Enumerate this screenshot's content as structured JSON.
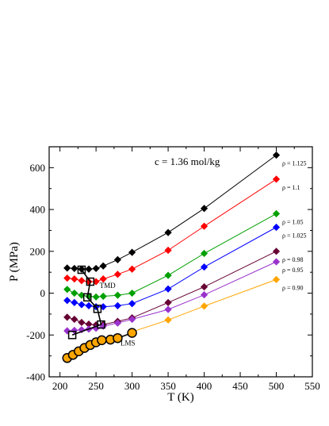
{
  "chart_data": {
    "type": "line",
    "title": "",
    "annotation": "c = 1.36 mol/kg",
    "xlabel": "T (K)",
    "ylabel": "P (MPa)",
    "xlim": [
      185,
      550
    ],
    "ylim": [
      -400,
      700
    ],
    "x_ticks": [
      200,
      250,
      300,
      350,
      400,
      450,
      500,
      550
    ],
    "y_ticks": [
      -400,
      -200,
      0,
      200,
      400,
      600
    ],
    "grid": false,
    "series": [
      {
        "name": "ρ = 1.125",
        "color": "#000000",
        "marker": "diamond",
        "x": [
          210,
          220,
          230,
          240,
          250,
          260,
          280,
          300,
          350,
          400,
          500
        ],
        "y": [
          120,
          118,
          115,
          115,
          118,
          130,
          160,
          195,
          290,
          405,
          660
        ]
      },
      {
        "name": "ρ = 1.1",
        "color": "#ff0000",
        "marker": "diamond",
        "x": [
          210,
          220,
          230,
          240,
          250,
          260,
          280,
          300,
          350,
          400,
          500
        ],
        "y": [
          72,
          68,
          60,
          55,
          55,
          68,
          90,
          115,
          205,
          320,
          545
        ]
      },
      {
        "name": "ρ = 1.05",
        "color": "#00a000",
        "marker": "diamond",
        "x": [
          210,
          220,
          230,
          240,
          250,
          260,
          280,
          300,
          350,
          400,
          500
        ],
        "y": [
          18,
          0,
          -10,
          -15,
          -18,
          -15,
          -10,
          0,
          85,
          190,
          380
        ]
      },
      {
        "name": "ρ = 1.025",
        "color": "#0000ff",
        "marker": "diamond",
        "x": [
          210,
          220,
          230,
          240,
          250,
          260,
          280,
          300,
          350,
          400,
          500
        ],
        "y": [
          -35,
          -45,
          -55,
          -60,
          -65,
          -65,
          -60,
          -50,
          20,
          125,
          315
        ]
      },
      {
        "name": "ρ = 0.98",
        "color": "#660033",
        "marker": "diamond",
        "x": [
          210,
          220,
          230,
          240,
          250,
          260,
          280,
          300,
          350,
          400,
          500
        ],
        "y": [
          -115,
          -125,
          -140,
          -148,
          -152,
          -150,
          -135,
          -118,
          -45,
          30,
          200
        ]
      },
      {
        "name": "ρ = 0.95",
        "color": "#9933cc",
        "marker": "diamond",
        "x": [
          210,
          220,
          230,
          240,
          250,
          260,
          280,
          300,
          350,
          400,
          500
        ],
        "y": [
          -180,
          -178,
          -175,
          -172,
          -168,
          -158,
          -143,
          -125,
          -78,
          -8,
          150
        ]
      },
      {
        "name": "ρ = 0.90",
        "color": "#ffa500",
        "marker": "diamond",
        "x": [
          300,
          350,
          400,
          500
        ],
        "y": [
          -185,
          -128,
          -62,
          65
        ]
      },
      {
        "name": "",
        "color": "#000000",
        "marker": "circle",
        "fill": "#ffa500",
        "x": [
          210,
          218,
          226,
          234,
          242,
          250,
          258,
          270,
          280,
          300
        ],
        "y": [
          -310,
          -295,
          -278,
          -262,
          -248,
          -235,
          -225,
          -222,
          -215,
          -190
        ]
      },
      {
        "name": "",
        "color": "#000000",
        "marker": "square",
        "fill": "none",
        "x": [
          230,
          242,
          238,
          252,
          257,
          217
        ],
        "y": [
          112,
          55,
          -20,
          -75,
          -150,
          -200
        ]
      }
    ],
    "annotations": [
      {
        "text": "TMD",
        "x": 255,
        "y": 25
      },
      {
        "text": "LMS",
        "x": 284,
        "y": -250
      }
    ]
  }
}
